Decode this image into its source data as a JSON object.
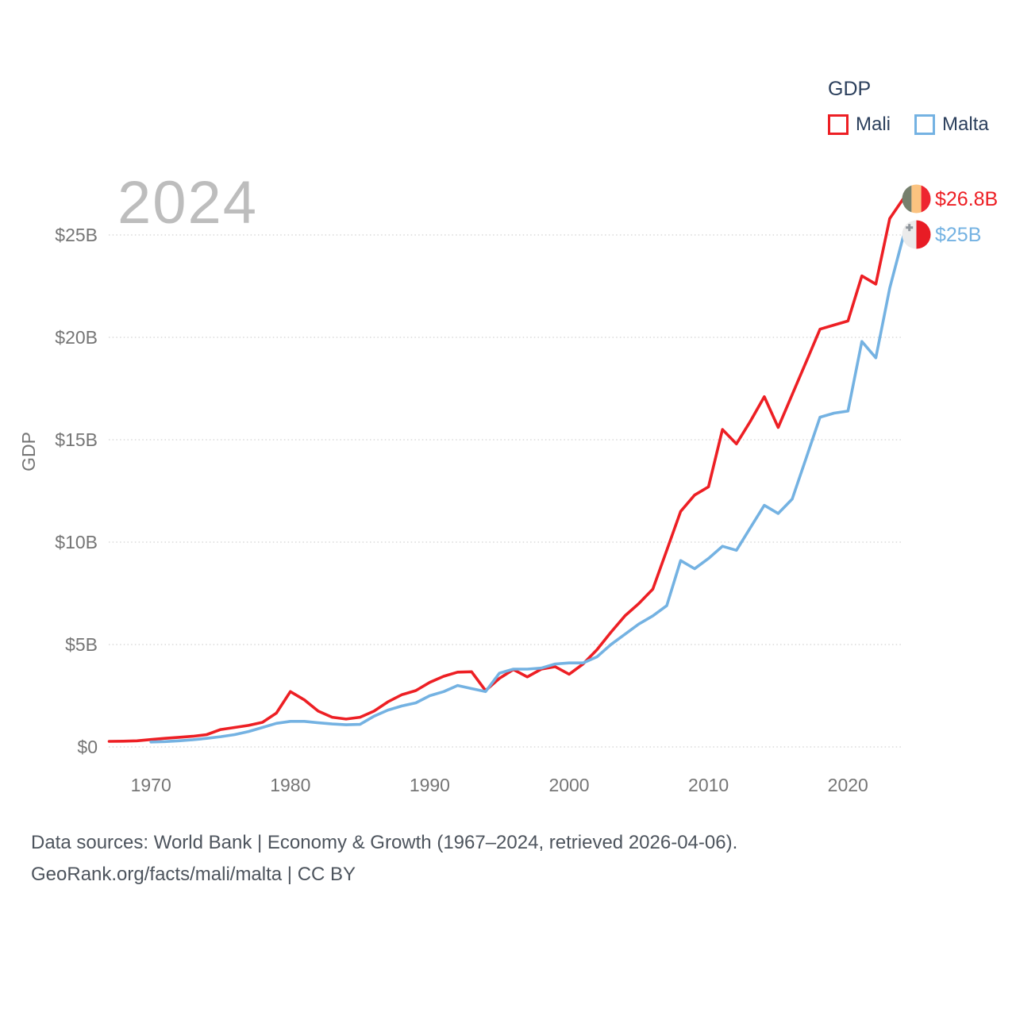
{
  "watermark": {
    "text": "2024",
    "color": "#bdbdbd"
  },
  "legend": {
    "title": "GDP",
    "items": [
      {
        "label": "Mali",
        "color": "#ed1f24"
      },
      {
        "label": "Malta",
        "color": "#74b2e2"
      }
    ]
  },
  "end_labels": [
    {
      "series": "Mali",
      "text": "$26.8B",
      "color": "#ed1f24",
      "flag": "mali-flag"
    },
    {
      "series": "Malta",
      "text": "$25B",
      "color": "#74b2e2",
      "flag": "malta-flag"
    }
  ],
  "flags": {
    "mali": {
      "green": "#76806d",
      "gold": "#fbc380",
      "red": "#ee2630"
    },
    "malta": {
      "white": "#ebebeb",
      "red": "#e81c25",
      "cross": "#8f969c"
    }
  },
  "footer": {
    "line1": "Data sources: World Bank | Economy & Growth (1967–2024, retrieved 2026-04-06).",
    "line2": "GeoRank.org/facts/mali/malta | CC BY"
  },
  "chart_data": {
    "type": "line",
    "ylabel": "GDP",
    "xlim": [
      1967,
      2024
    ],
    "ylim": [
      0,
      27.5
    ],
    "grid": "horizontal-dotted",
    "legend_position": "top-right",
    "yticks": [
      {
        "value": 0,
        "label": "$0"
      },
      {
        "value": 5,
        "label": "$5B"
      },
      {
        "value": 10,
        "label": "$10B"
      },
      {
        "value": 15,
        "label": "$15B"
      },
      {
        "value": 20,
        "label": "$20B"
      },
      {
        "value": 25,
        "label": "$25B"
      }
    ],
    "xticks": [
      {
        "value": 1970,
        "label": "1970"
      },
      {
        "value": 1980,
        "label": "1980"
      },
      {
        "value": 1990,
        "label": "1990"
      },
      {
        "value": 2000,
        "label": "2000"
      },
      {
        "value": 2010,
        "label": "2010"
      },
      {
        "value": 2020,
        "label": "2020"
      }
    ],
    "x_years": [
      1967,
      1968,
      1969,
      1970,
      1971,
      1972,
      1973,
      1974,
      1975,
      1976,
      1977,
      1978,
      1979,
      1980,
      1981,
      1982,
      1983,
      1984,
      1985,
      1986,
      1987,
      1988,
      1989,
      1990,
      1991,
      1992,
      1993,
      1994,
      1995,
      1996,
      1997,
      1998,
      1999,
      2000,
      2001,
      2002,
      2003,
      2004,
      2005,
      2006,
      2007,
      2008,
      2009,
      2010,
      2011,
      2012,
      2013,
      2014,
      2015,
      2016,
      2017,
      2018,
      2019,
      2020,
      2021,
      2022,
      2023,
      2024
    ],
    "series": [
      {
        "name": "Mali",
        "color": "#ed1f24",
        "unit": "billion USD",
        "values": [
          0.27,
          0.28,
          0.3,
          0.36,
          0.42,
          0.47,
          0.52,
          0.6,
          0.85,
          0.95,
          1.05,
          1.2,
          1.65,
          2.7,
          2.3,
          1.75,
          1.45,
          1.36,
          1.45,
          1.75,
          2.2,
          2.55,
          2.75,
          3.15,
          3.45,
          3.65,
          3.67,
          2.75,
          3.35,
          3.78,
          3.42,
          3.8,
          3.92,
          3.55,
          4.05,
          4.75,
          5.6,
          6.4,
          7.0,
          7.7,
          9.6,
          11.5,
          12.3,
          12.7,
          15.5,
          14.8,
          15.9,
          17.1,
          15.6,
          17.2,
          18.8,
          20.4,
          20.6,
          20.8,
          23.0,
          22.6,
          25.8,
          26.8
        ]
      },
      {
        "name": "Malta",
        "color": "#74b2e2",
        "unit": "billion USD",
        "values": [
          null,
          null,
          null,
          0.24,
          0.26,
          0.3,
          0.35,
          0.42,
          0.5,
          0.6,
          0.75,
          0.95,
          1.15,
          1.25,
          1.25,
          1.18,
          1.12,
          1.08,
          1.1,
          1.5,
          1.8,
          2.0,
          2.15,
          2.5,
          2.7,
          3.0,
          2.85,
          2.7,
          3.6,
          3.8,
          3.8,
          3.85,
          4.05,
          4.1,
          4.1,
          4.4,
          5.0,
          5.5,
          6.0,
          6.4,
          6.9,
          9.1,
          8.7,
          9.2,
          9.8,
          9.6,
          10.7,
          11.8,
          11.4,
          12.1,
          14.1,
          16.1,
          16.3,
          16.4,
          19.8,
          19.0,
          22.4,
          25.0
        ]
      }
    ]
  }
}
